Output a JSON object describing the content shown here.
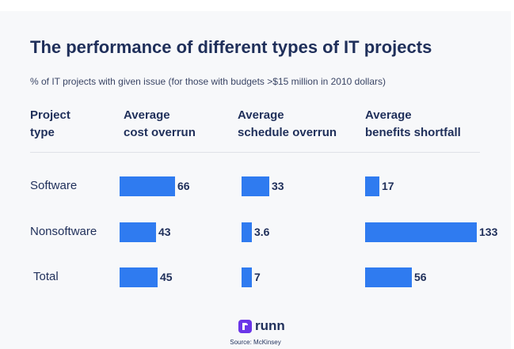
{
  "title": "The performance of different types of IT projects",
  "subtitle": "% of IT projects with given issue (for those with budgets >$15 million in 2010 dollars)",
  "headers": {
    "type_line1": "Project",
    "type_line2": "type",
    "cost_line1": "Average",
    "cost_line2": "cost overrun",
    "schedule_line1": "Average",
    "schedule_line2": "schedule overrun",
    "benefits_line1": "Average",
    "benefits_line2": "benefits shortfall"
  },
  "logo": {
    "text": "runn",
    "icon": "runn-logo-icon",
    "color": "#6a35e8"
  },
  "source": "Source: McKinsey",
  "colors": {
    "bar": "#2f7bf0",
    "text": "#1f2f5a"
  },
  "chart_data": {
    "type": "table",
    "title": "The performance of different types of IT projects",
    "categories": [
      "Software",
      "Nonsoftware",
      "Total"
    ],
    "series": [
      {
        "name": "Average cost overrun",
        "values": [
          66,
          43,
          45
        ],
        "labels": [
          "66",
          "43",
          "45"
        ]
      },
      {
        "name": "Average schedule overrun",
        "values": [
          33,
          3.6,
          7
        ],
        "labels": [
          "33",
          "3.6",
          "7"
        ]
      },
      {
        "name": "Average benefits shortfall",
        "values": [
          17,
          133,
          56
        ],
        "labels": [
          "17",
          "133",
          "56"
        ]
      }
    ],
    "unit": "%"
  }
}
